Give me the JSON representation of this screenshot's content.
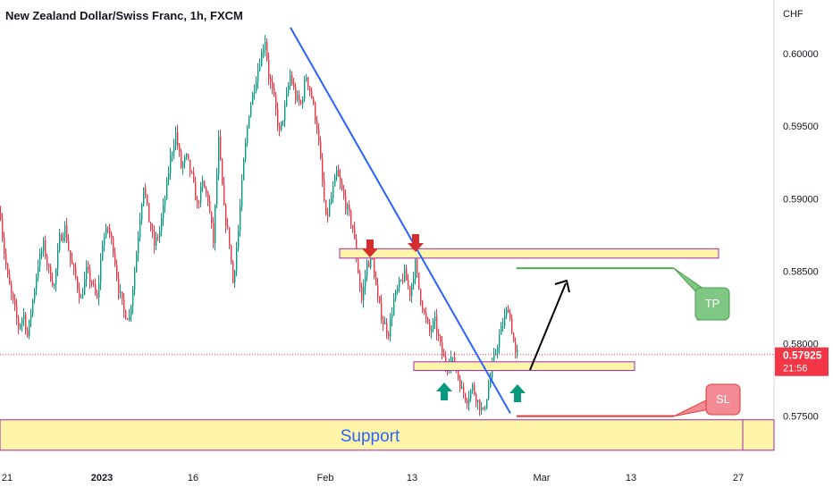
{
  "title": "New Zealand Dollar/Swiss Franc, 1h, FXCM",
  "chart_data": {
    "type": "candlestick",
    "title": "New Zealand Dollar/Swiss Franc, 1h, FXCM",
    "y_axis_unit": "CHF",
    "ylim": [
      0.5727,
      0.6037
    ],
    "y_ticks": [
      "0.60000",
      "0.59500",
      "0.59000",
      "0.58500",
      "0.58000",
      "0.57500"
    ],
    "y_tick_values": [
      0.6,
      0.595,
      0.59,
      0.585,
      0.58,
      0.575
    ],
    "x_ticks": [
      "21",
      "2023",
      "16",
      "Feb",
      "13",
      "Mar",
      "13",
      "27"
    ],
    "current_price": "0.57925",
    "countdown": "21:56",
    "price_path": [
      [
        0,
        0.589
      ],
      [
        3,
        0.5868
      ],
      [
        8,
        0.5845
      ],
      [
        14,
        0.5828
      ],
      [
        20,
        0.5812
      ],
      [
        26,
        0.582
      ],
      [
        30,
        0.5805
      ],
      [
        36,
        0.583
      ],
      [
        42,
        0.5855
      ],
      [
        48,
        0.5868
      ],
      [
        54,
        0.585
      ],
      [
        60,
        0.584
      ],
      [
        66,
        0.5872
      ],
      [
        72,
        0.588
      ],
      [
        78,
        0.5858
      ],
      [
        84,
        0.5845
      ],
      [
        90,
        0.583
      ],
      [
        96,
        0.585
      ],
      [
        102,
        0.5842
      ],
      [
        108,
        0.583
      ],
      [
        114,
        0.587
      ],
      [
        120,
        0.588
      ],
      [
        126,
        0.5866
      ],
      [
        132,
        0.5838
      ],
      [
        138,
        0.5822
      ],
      [
        144,
        0.5818
      ],
      [
        150,
        0.585
      ],
      [
        156,
        0.5888
      ],
      [
        160,
        0.591
      ],
      [
        166,
        0.5885
      ],
      [
        172,
        0.5868
      ],
      [
        178,
        0.5878
      ],
      [
        184,
        0.59
      ],
      [
        190,
        0.5928
      ],
      [
        196,
        0.5945
      ],
      [
        202,
        0.5922
      ],
      [
        208,
        0.5928
      ],
      [
        214,
        0.5915
      ],
      [
        220,
        0.5895
      ],
      [
        226,
        0.591
      ],
      [
        232,
        0.59
      ],
      [
        238,
        0.587
      ],
      [
        244,
        0.594
      ],
      [
        250,
        0.5892
      ],
      [
        256,
        0.587
      ],
      [
        260,
        0.5842
      ],
      [
        266,
        0.5878
      ],
      [
        272,
        0.5925
      ],
      [
        278,
        0.596
      ],
      [
        284,
        0.5978
      ],
      [
        290,
        0.5995
      ],
      [
        296,
        0.601
      ],
      [
        300,
        0.5985
      ],
      [
        306,
        0.5968
      ],
      [
        312,
        0.5945
      ],
      [
        318,
        0.5962
      ],
      [
        324,
        0.5985
      ],
      [
        330,
        0.597
      ],
      [
        336,
        0.5965
      ],
      [
        342,
        0.5985
      ],
      [
        348,
        0.597
      ],
      [
        354,
        0.595
      ],
      [
        360,
        0.5912
      ],
      [
        364,
        0.5885
      ],
      [
        370,
        0.59
      ],
      [
        376,
        0.5918
      ],
      [
        382,
        0.5905
      ],
      [
        388,
        0.5892
      ],
      [
        394,
        0.588
      ],
      [
        398,
        0.586
      ],
      [
        404,
        0.583
      ],
      [
        410,
        0.5855
      ],
      [
        416,
        0.5858
      ],
      [
        422,
        0.583
      ],
      [
        428,
        0.5815
      ],
      [
        434,
        0.5808
      ],
      [
        440,
        0.583
      ],
      [
        446,
        0.584
      ],
      [
        452,
        0.5848
      ],
      [
        458,
        0.5835
      ],
      [
        464,
        0.5855
      ],
      [
        468,
        0.5838
      ],
      [
        474,
        0.582
      ],
      [
        480,
        0.5808
      ],
      [
        486,
        0.5815
      ],
      [
        492,
        0.5798
      ],
      [
        498,
        0.5785
      ],
      [
        504,
        0.579
      ],
      [
        510,
        0.5782
      ],
      [
        516,
        0.5768
      ],
      [
        522,
        0.5762
      ],
      [
        528,
        0.577
      ],
      [
        534,
        0.576
      ],
      [
        540,
        0.5752
      ],
      [
        546,
        0.577
      ],
      [
        552,
        0.579
      ],
      [
        558,
        0.5805
      ],
      [
        564,
        0.5818
      ],
      [
        568,
        0.5825
      ],
      [
        572,
        0.581
      ],
      [
        576,
        0.5792
      ],
      [
        578,
        0.5793
      ]
    ]
  },
  "annotations": {
    "resistance_zone": {
      "price_low": 0.5859,
      "price_high": 0.58655
    },
    "entry_zone": {
      "price_low": 0.57815,
      "price_high": 0.57875
    },
    "support_zone": {
      "price_low": 0.57265,
      "price_high": 0.57475
    },
    "support_label": "Support",
    "tp_label": "TP",
    "tp_price": 0.5852,
    "sl_label": "SL",
    "sl_price": 0.575,
    "trendline": {
      "from": 0.6018,
      "to": 0.5752
    },
    "colors": {
      "zone_fill": "#fff5a8",
      "zone_border": "#9c27b0",
      "trendline": "#2962ff",
      "tp_line": "#4caf50",
      "tp_bubble": "#81c784",
      "sl_line": "#e53935",
      "sl_bubble": "#f28b94",
      "arrow_down": "#d32f2f",
      "arrow_up": "#089981",
      "bull": "#089981",
      "bear": "#f23645",
      "price_label_bg": "#f23645"
    }
  }
}
